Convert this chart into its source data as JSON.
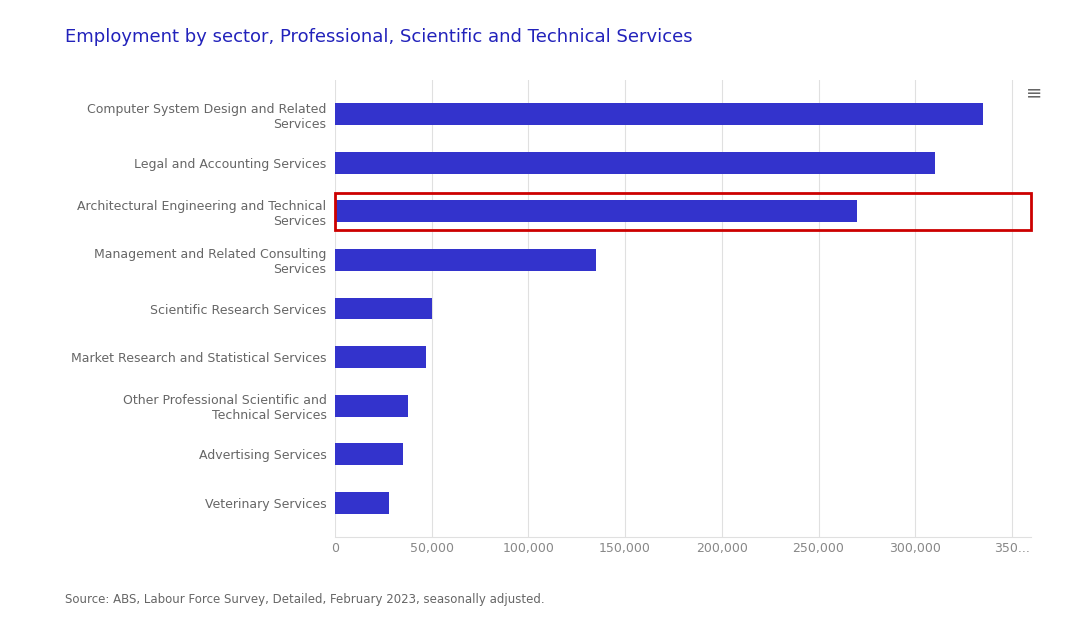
{
  "title": "Employment by sector, Professional, Scientific and Technical Services",
  "categories": [
    "Veterinary Services",
    "Advertising Services",
    "Other Professional Scientific and\nTechnical Services",
    "Market Research and Statistical Services",
    "Scientific Research Services",
    "Management and Related Consulting\nServices",
    "Architectural Engineering and Technical\nServices",
    "Legal and Accounting Services",
    "Computer System Design and Related\nServices"
  ],
  "values": [
    28000,
    35000,
    38000,
    47000,
    50000,
    135000,
    270000,
    310000,
    335000
  ],
  "bar_color": "#3333cc",
  "highlighted_index": 6,
  "highlight_box_color": "#cc0000",
  "xlim": [
    0,
    360000
  ],
  "xticks": [
    0,
    50000,
    100000,
    150000,
    200000,
    250000,
    300000,
    350000
  ],
  "xtick_labels": [
    "0",
    "50,000",
    "100,000",
    "150,000",
    "200,000",
    "250,000",
    "300,000",
    "350..."
  ],
  "source_text": "Source: ABS, Labour Force Survey, Detailed, February 2023, seasonally adjusted.",
  "title_color": "#2222bb",
  "label_color": "#666666",
  "background_color": "#ffffff",
  "title_fontsize": 13,
  "label_fontsize": 9,
  "tick_fontsize": 9,
  "source_fontsize": 8.5
}
